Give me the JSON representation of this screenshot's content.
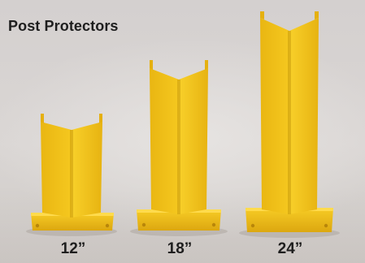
{
  "title": "Post Protectors",
  "products": [
    {
      "size_label": "12”"
    },
    {
      "size_label": "18”"
    },
    {
      "size_label": "24”"
    }
  ],
  "colors": {
    "protector_yellow": "#f2c21a",
    "protector_shade": "#d9a80e",
    "protector_highlight": "#ffd84a",
    "background": "#d9d5d3",
    "text": "#1e1e1e"
  }
}
